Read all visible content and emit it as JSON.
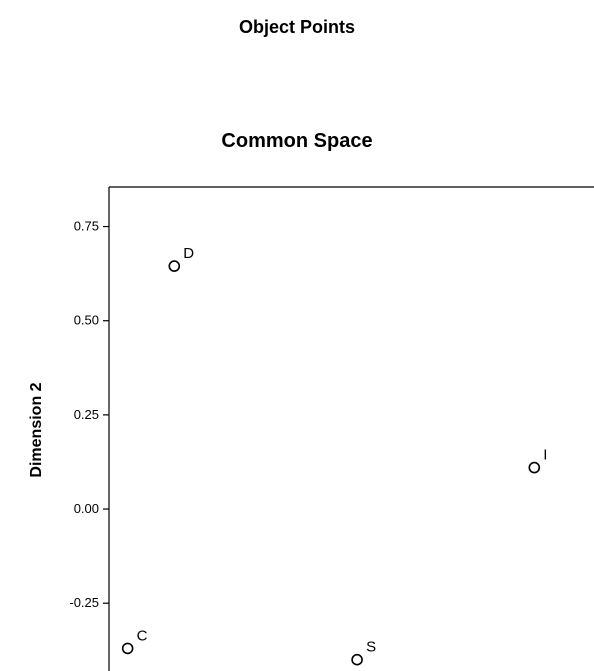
{
  "page": {
    "heading": "Object Points"
  },
  "chart_data": {
    "type": "scatter",
    "title": "Common Space",
    "xlabel": "",
    "ylabel": "Dimension 2",
    "ylim": [
      -0.43,
      0.855
    ],
    "yticks": [
      0.75,
      0.5,
      0.25,
      0.0,
      -0.25
    ],
    "ytick_labels": [
      "0.75",
      "0.50",
      "0.25",
      "0.00",
      "-0.25"
    ],
    "xlim": [
      -1.3,
      1.3
    ],
    "grid": false,
    "legend": "none",
    "points": [
      {
        "label": "D",
        "x": -0.95,
        "y": 0.645
      },
      {
        "label": "I",
        "x": 0.98,
        "y": 0.11
      },
      {
        "label": "C",
        "x": -1.2,
        "y": -0.37
      },
      {
        "label": "S",
        "x": 0.03,
        "y": -0.4
      }
    ],
    "marker": "open-circle",
    "color": "#000000"
  }
}
